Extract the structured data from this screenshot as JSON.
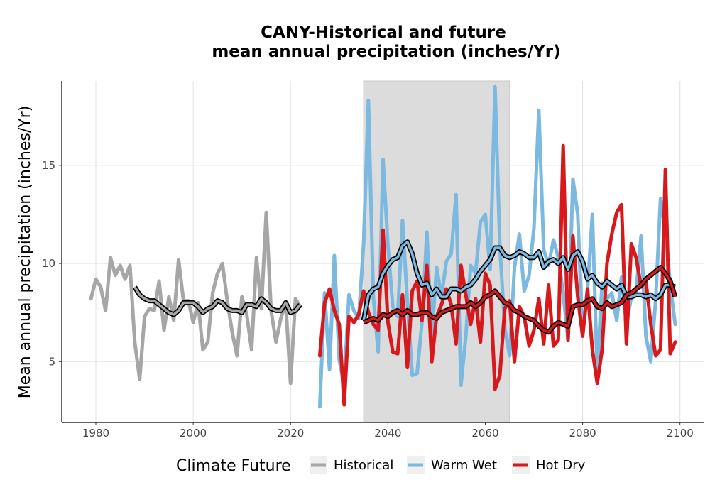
{
  "chart_data": {
    "type": "line",
    "title_line1": "CANY-Historical and future",
    "title_line2": "mean annual precipitation (inches/Yr)",
    "xlabel": "",
    "ylabel": "Mean annual precipitation (inches/Yr)",
    "xlim": [
      1973,
      2105
    ],
    "ylim": [
      1.9,
      19.3
    ],
    "x_ticks": [
      1980,
      2000,
      2020,
      2040,
      2060,
      2080,
      2100
    ],
    "y_ticks": [
      5,
      10,
      15
    ],
    "grid": true,
    "shaded_period": [
      2035,
      2065
    ],
    "legend": {
      "title": "Climate Future",
      "position": "bottom",
      "entries": [
        {
          "label": "Historical",
          "color": "#a6a6a6"
        },
        {
          "label": "Warm Wet",
          "color": "#7cb9e0"
        },
        {
          "label": "Hot Dry",
          "color": "#d7191c"
        }
      ]
    },
    "series": [
      {
        "name": "Historical",
        "color": "#a6a6a6",
        "x": [
          1979,
          1980,
          1981,
          1982,
          1983,
          1984,
          1985,
          1986,
          1987,
          1988,
          1989,
          1990,
          1991,
          1992,
          1993,
          1994,
          1995,
          1996,
          1997,
          1998,
          1999,
          2000,
          2001,
          2002,
          2003,
          2004,
          2005,
          2006,
          2007,
          2008,
          2009,
          2010,
          2011,
          2012,
          2013,
          2014,
          2015,
          2016,
          2017,
          2018,
          2019,
          2020,
          2021,
          2022
        ],
        "y": [
          8.2,
          9.2,
          8.8,
          7.6,
          10.3,
          9.4,
          9.9,
          9.2,
          9.9,
          6.0,
          4.1,
          7.3,
          7.7,
          7.6,
          9.1,
          6.6,
          8.3,
          7.1,
          10.2,
          8.1,
          8.1,
          7.0,
          8.0,
          5.6,
          6.0,
          8.5,
          9.5,
          10.0,
          8.1,
          6.5,
          5.3,
          8.3,
          7.4,
          5.6,
          10.3,
          7.7,
          12.6,
          7.6,
          6.0,
          7.2,
          8.0,
          3.9,
          8.2,
          7.8
        ]
      },
      {
        "name": "Warm Wet",
        "color": "#7cb9e0",
        "x": [
          2026,
          2027,
          2028,
          2029,
          2030,
          2031,
          2032,
          2033,
          2034,
          2035,
          2036,
          2037,
          2038,
          2039,
          2040,
          2041,
          2042,
          2043,
          2044,
          2045,
          2046,
          2047,
          2048,
          2049,
          2050,
          2051,
          2052,
          2053,
          2054,
          2055,
          2056,
          2057,
          2058,
          2059,
          2060,
          2061,
          2062,
          2063,
          2064,
          2065,
          2066,
          2067,
          2068,
          2069,
          2070,
          2071,
          2072,
          2073,
          2074,
          2075,
          2076,
          2077,
          2078,
          2079,
          2080,
          2081,
          2082,
          2083,
          2084,
          2085,
          2086,
          2087,
          2088,
          2089,
          2090,
          2091,
          2092,
          2093,
          2094,
          2095,
          2096,
          2097,
          2098,
          2099
        ],
        "y": [
          2.7,
          8.5,
          4.6,
          10.4,
          5.1,
          3.8,
          8.4,
          7.6,
          7.2,
          11.0,
          18.3,
          8.3,
          5.5,
          15.3,
          10.9,
          7.8,
          7.3,
          12.2,
          8.0,
          4.3,
          4.4,
          7.0,
          11.6,
          6.2,
          9.8,
          8.3,
          10.1,
          10.5,
          13.5,
          3.8,
          6.3,
          9.9,
          9.5,
          12.1,
          12.5,
          9.7,
          19.0,
          10.9,
          6.7,
          5.3,
          9.8,
          11.5,
          8.6,
          9.4,
          11.8,
          17.8,
          10.7,
          9.9,
          11.2,
          10.3,
          8.5,
          6.1,
          14.3,
          12.5,
          6.4,
          8.7,
          12.5,
          4.4,
          9.0,
          8.2,
          8.5,
          7.1,
          9.3,
          6.9,
          8.3,
          8.6,
          11.4,
          6.3,
          5.0,
          8.1,
          13.3,
          11.7,
          8.9,
          6.9
        ]
      },
      {
        "name": "Hot Dry",
        "color": "#d7191c",
        "x": [
          2026,
          2027,
          2028,
          2029,
          2030,
          2031,
          2032,
          2033,
          2034,
          2035,
          2036,
          2037,
          2038,
          2039,
          2040,
          2041,
          2042,
          2043,
          2044,
          2045,
          2046,
          2047,
          2048,
          2049,
          2050,
          2051,
          2052,
          2053,
          2054,
          2055,
          2056,
          2057,
          2058,
          2059,
          2060,
          2061,
          2062,
          2063,
          2064,
          2065,
          2066,
          2067,
          2068,
          2069,
          2070,
          2071,
          2072,
          2073,
          2074,
          2075,
          2076,
          2077,
          2078,
          2079,
          2080,
          2081,
          2082,
          2083,
          2084,
          2085,
          2086,
          2087,
          2088,
          2089,
          2090,
          2091,
          2092,
          2093,
          2094,
          2095,
          2096,
          2097,
          2098,
          2099
        ],
        "y": [
          5.3,
          8.0,
          8.7,
          7.6,
          6.9,
          2.8,
          7.3,
          7.0,
          7.4,
          8.6,
          7.5,
          6.9,
          6.6,
          11.7,
          7.0,
          5.5,
          5.4,
          8.4,
          4.7,
          8.6,
          9.1,
          7.1,
          9.9,
          5.0,
          7.3,
          7.9,
          8.7,
          7.9,
          5.9,
          9.9,
          8.4,
          6.9,
          8.2,
          6.0,
          9.5,
          8.9,
          3.6,
          4.3,
          7.7,
          8.1,
          5.0,
          7.8,
          7.3,
          5.8,
          6.6,
          8.2,
          5.9,
          8.9,
          5.8,
          6.1,
          16.0,
          6.1,
          11.4,
          8.3,
          6.3,
          8.7,
          5.6,
          3.9,
          5.6,
          10.0,
          11.5,
          12.6,
          13.0,
          5.9,
          11.0,
          10.3,
          8.8,
          9.1,
          6.9,
          5.3,
          5.6,
          14.8,
          5.4,
          6.0
        ]
      },
      {
        "name": "",
        "role": "rolling-mean",
        "color": "#a6a6a6",
        "x": [
          1988,
          1989,
          1990,
          1991,
          1992,
          1993,
          1994,
          1995,
          1996,
          1997,
          1998,
          1999,
          2000,
          2001,
          2002,
          2003,
          2004,
          2005,
          2006,
          2007,
          2008,
          2009,
          2010,
          2011,
          2012,
          2013,
          2014,
          2015,
          2016,
          2017,
          2018,
          2019,
          2020,
          2021,
          2022
        ],
        "y": [
          8.8,
          8.4,
          8.2,
          8.1,
          8.1,
          7.9,
          7.7,
          7.5,
          7.4,
          7.6,
          8.0,
          8.0,
          8.0,
          7.8,
          7.5,
          7.7,
          7.8,
          8.1,
          8.0,
          7.7,
          7.6,
          7.6,
          7.5,
          7.9,
          7.9,
          7.8,
          8.2,
          8.0,
          7.7,
          7.6,
          7.6,
          8.0,
          7.5,
          7.6,
          7.9
        ]
      },
      {
        "name": "",
        "role": "rolling-mean",
        "color": "#7cb9e0",
        "x": [
          2035,
          2036,
          2037,
          2038,
          2039,
          2040,
          2041,
          2042,
          2043,
          2044,
          2045,
          2046,
          2047,
          2048,
          2049,
          2050,
          2051,
          2052,
          2053,
          2054,
          2055,
          2056,
          2057,
          2058,
          2059,
          2060,
          2061,
          2062,
          2063,
          2064,
          2065,
          2066,
          2067,
          2068,
          2069,
          2070,
          2071,
          2072,
          2073,
          2074,
          2075,
          2076,
          2077,
          2078,
          2079,
          2080,
          2081,
          2082,
          2083,
          2084,
          2085,
          2086,
          2087,
          2088,
          2089,
          2090,
          2091,
          2092,
          2093,
          2094,
          2095,
          2096,
          2097,
          2098,
          2099
        ],
        "y": [
          7.1,
          8.4,
          8.7,
          8.8,
          9.5,
          9.9,
          10.2,
          10.3,
          10.9,
          11.1,
          10.5,
          9.5,
          8.9,
          9.0,
          8.4,
          8.7,
          8.3,
          8.3,
          8.7,
          8.7,
          8.6,
          8.8,
          8.9,
          9.2,
          9.6,
          9.9,
          10.2,
          10.8,
          10.8,
          10.4,
          10.3,
          10.4,
          10.6,
          10.5,
          10.3,
          10.3,
          10.6,
          9.8,
          10.1,
          10.2,
          10.0,
          10.3,
          9.7,
          10.4,
          10.6,
          10.1,
          9.2,
          9.4,
          9.0,
          8.8,
          9.1,
          8.9,
          8.7,
          8.9,
          8.3,
          8.3,
          8.4,
          8.4,
          8.3,
          8.4,
          8.2,
          8.4,
          8.9,
          8.9,
          8.8
        ]
      },
      {
        "name": "",
        "role": "rolling-mean",
        "color": "#d7191c",
        "x": [
          2035,
          2036,
          2037,
          2038,
          2039,
          2040,
          2041,
          2042,
          2043,
          2044,
          2045,
          2046,
          2047,
          2048,
          2049,
          2050,
          2051,
          2052,
          2053,
          2054,
          2055,
          2056,
          2057,
          2058,
          2059,
          2060,
          2061,
          2062,
          2063,
          2064,
          2065,
          2066,
          2067,
          2068,
          2069,
          2070,
          2071,
          2072,
          2073,
          2074,
          2075,
          2076,
          2077,
          2078,
          2079,
          2080,
          2081,
          2082,
          2083,
          2084,
          2085,
          2086,
          2087,
          2088,
          2089,
          2090,
          2091,
          2092,
          2093,
          2094,
          2095,
          2096,
          2097,
          2098,
          2099
        ],
        "y": [
          7.0,
          7.1,
          7.2,
          7.1,
          7.4,
          7.3,
          7.5,
          7.6,
          7.4,
          7.6,
          7.4,
          7.4,
          7.5,
          7.5,
          7.3,
          7.2,
          7.5,
          7.6,
          7.7,
          7.8,
          7.8,
          7.8,
          8.0,
          7.8,
          8.0,
          8.3,
          8.4,
          8.6,
          8.3,
          8.0,
          7.9,
          7.6,
          7.5,
          7.3,
          7.2,
          7.1,
          6.8,
          6.6,
          6.5,
          6.8,
          7.0,
          6.9,
          6.8,
          7.8,
          7.9,
          7.9,
          8.1,
          8.2,
          7.8,
          7.7,
          8.0,
          7.8,
          7.9,
          8.0,
          8.4,
          8.5,
          8.7,
          8.9,
          9.2,
          9.4,
          9.6,
          9.8,
          9.5,
          9.1,
          8.3
        ]
      }
    ]
  }
}
